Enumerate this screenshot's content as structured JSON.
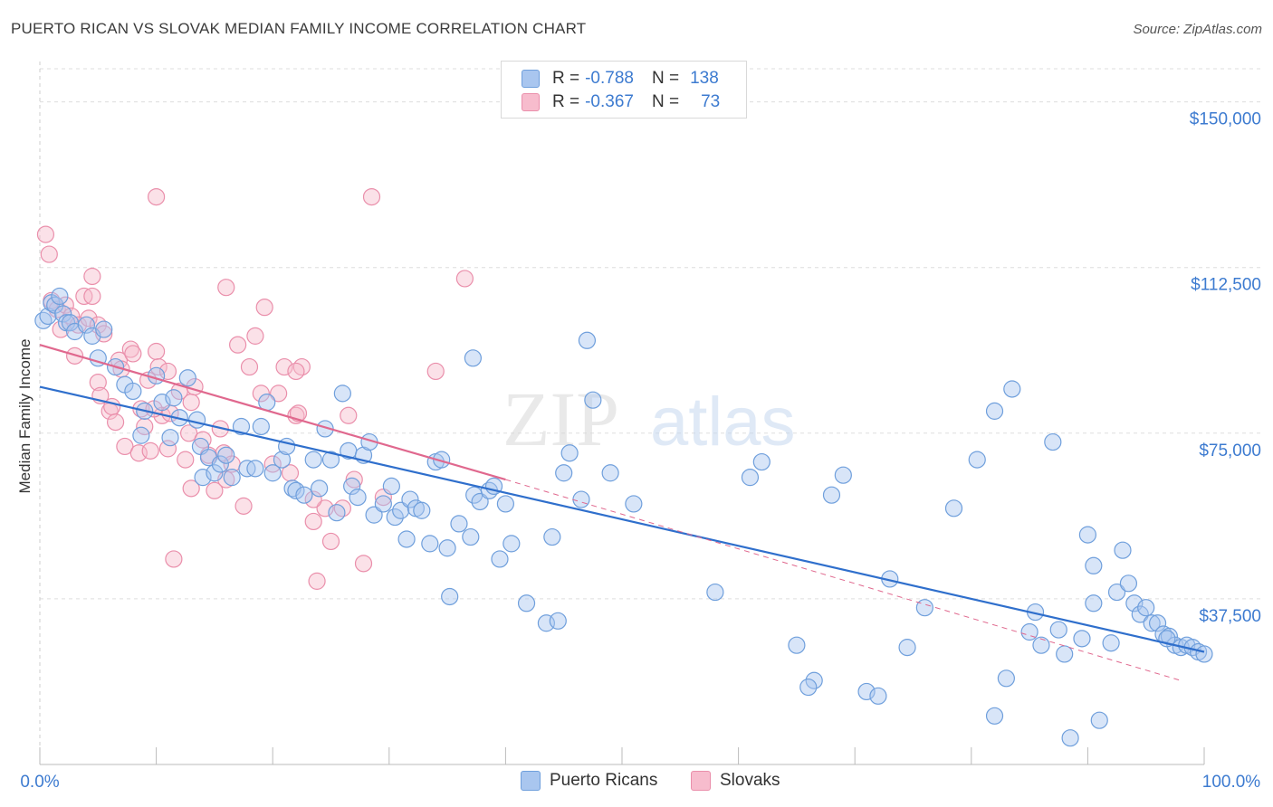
{
  "title": "PUERTO RICAN VS SLOVAK MEDIAN FAMILY INCOME CORRELATION CHART",
  "source": "Source: ZipAtlas.com",
  "watermark": {
    "zip": "ZIP",
    "atlas": "atlas"
  },
  "colors": {
    "blue_fill": "#a9c6ef",
    "blue_stroke": "#6f9fdc",
    "blue_line": "#2f6fcc",
    "pink_fill": "#f7bccd",
    "pink_stroke": "#ea8fab",
    "pink_line": "#e0688e",
    "tick_text": "#3d7bd0",
    "grid": "#dddddd"
  },
  "legend": {
    "rows": [
      {
        "r_label": "R =",
        "r_value": "-0.788",
        "n_label": "N =",
        "n_value": "138"
      },
      {
        "r_label": "R =",
        "r_value": "-0.367",
        "n_label": "N =",
        "n_value": "73"
      }
    ]
  },
  "bottom_legend": [
    {
      "label": "Puerto Ricans"
    },
    {
      "label": "Slovaks"
    }
  ],
  "chart_data": {
    "type": "scatter",
    "xlabel": "",
    "ylabel": "Median Family Income",
    "xlim": [
      0,
      100
    ],
    "ylim": [
      0,
      157500
    ],
    "x_tick_labels": [
      "0.0%",
      "100.0%"
    ],
    "y_ticks": [
      {
        "value": 37500,
        "label": "$37,500"
      },
      {
        "value": 75000,
        "label": "$75,000"
      },
      {
        "value": 112500,
        "label": "$112,500"
      },
      {
        "value": 150000,
        "label": "$150,000"
      }
    ],
    "grid": "horizontal dashed",
    "legend_position": "top-center",
    "series": [
      {
        "name": "Puerto Ricans",
        "color": "blue",
        "trend": {
          "x0": 0,
          "y0": 85500,
          "x1": 100,
          "y1": 25500
        },
        "points": [
          [
            0.3,
            100500
          ],
          [
            0.7,
            101500
          ],
          [
            1.0,
            104500
          ],
          [
            1.3,
            104000
          ],
          [
            1.7,
            106000
          ],
          [
            2.0,
            102000
          ],
          [
            2.3,
            100000
          ],
          [
            2.6,
            100000
          ],
          [
            3.0,
            98000
          ],
          [
            4.0,
            99500
          ],
          [
            4.5,
            97000
          ],
          [
            5.5,
            98500
          ],
          [
            5.0,
            92000
          ],
          [
            6.5,
            90000
          ],
          [
            7.3,
            86000
          ],
          [
            8.0,
            84500
          ],
          [
            8.7,
            74500
          ],
          [
            9.0,
            80000
          ],
          [
            10.0,
            88000
          ],
          [
            10.5,
            82000
          ],
          [
            11.5,
            83000
          ],
          [
            11.2,
            74000
          ],
          [
            12.0,
            78500
          ],
          [
            12.7,
            87500
          ],
          [
            13.5,
            78000
          ],
          [
            13.8,
            72000
          ],
          [
            14.0,
            65000
          ],
          [
            14.5,
            69500
          ],
          [
            15.0,
            66000
          ],
          [
            15.5,
            68000
          ],
          [
            16.0,
            70000
          ],
          [
            16.5,
            65000
          ],
          [
            17.3,
            76500
          ],
          [
            17.8,
            67000
          ],
          [
            18.5,
            67000
          ],
          [
            19.0,
            76500
          ],
          [
            19.5,
            82000
          ],
          [
            20.0,
            66000
          ],
          [
            20.8,
            69000
          ],
          [
            21.2,
            72000
          ],
          [
            21.7,
            62500
          ],
          [
            22.0,
            62000
          ],
          [
            22.7,
            61000
          ],
          [
            23.5,
            69000
          ],
          [
            24.0,
            62500
          ],
          [
            24.5,
            76000
          ],
          [
            25.0,
            69000
          ],
          [
            25.5,
            57000
          ],
          [
            26.0,
            84000
          ],
          [
            26.5,
            71000
          ],
          [
            26.8,
            63000
          ],
          [
            27.3,
            60500
          ],
          [
            27.8,
            70000
          ],
          [
            28.3,
            73000
          ],
          [
            28.7,
            56500
          ],
          [
            29.5,
            59000
          ],
          [
            30.2,
            63000
          ],
          [
            30.5,
            56000
          ],
          [
            31.0,
            57500
          ],
          [
            31.5,
            51000
          ],
          [
            31.8,
            60000
          ],
          [
            32.3,
            58000
          ],
          [
            32.8,
            57500
          ],
          [
            33.5,
            50000
          ],
          [
            34.0,
            68500
          ],
          [
            34.5,
            69000
          ],
          [
            35.0,
            49000
          ],
          [
            35.2,
            38000
          ],
          [
            36.0,
            54500
          ],
          [
            37.0,
            51500
          ],
          [
            37.3,
            61000
          ],
          [
            37.8,
            59500
          ],
          [
            37.2,
            92000
          ],
          [
            38.6,
            62000
          ],
          [
            39.0,
            63000
          ],
          [
            39.5,
            46500
          ],
          [
            40.0,
            59000
          ],
          [
            40.5,
            50000
          ],
          [
            41.8,
            36500
          ],
          [
            43.5,
            32000
          ],
          [
            44.5,
            32500
          ],
          [
            44.0,
            51500
          ],
          [
            45.0,
            66000
          ],
          [
            45.5,
            70500
          ],
          [
            46.5,
            60000
          ],
          [
            47.0,
            96000
          ],
          [
            47.5,
            82500
          ],
          [
            49.0,
            66000
          ],
          [
            51.0,
            59000
          ],
          [
            58.0,
            39000
          ],
          [
            61.0,
            65000
          ],
          [
            62.0,
            68500
          ],
          [
            65.0,
            27000
          ],
          [
            66.5,
            19000
          ],
          [
            66.0,
            17500
          ],
          [
            68.0,
            61000
          ],
          [
            69.0,
            65500
          ],
          [
            71.0,
            16500
          ],
          [
            72.0,
            15500
          ],
          [
            73.0,
            42000
          ],
          [
            74.5,
            26500
          ],
          [
            76.0,
            35500
          ],
          [
            78.5,
            58000
          ],
          [
            80.5,
            69000
          ],
          [
            82.0,
            80000
          ],
          [
            82.0,
            11000
          ],
          [
            83.0,
            19500
          ],
          [
            83.5,
            85000
          ],
          [
            85.0,
            30000
          ],
          [
            85.5,
            34500
          ],
          [
            86.0,
            27000
          ],
          [
            87.0,
            73000
          ],
          [
            87.5,
            30500
          ],
          [
            88.0,
            25000
          ],
          [
            88.5,
            6000
          ],
          [
            89.5,
            28500
          ],
          [
            90.0,
            52000
          ],
          [
            90.5,
            36500
          ],
          [
            90.5,
            45000
          ],
          [
            91.0,
            10000
          ],
          [
            92.0,
            27500
          ],
          [
            92.5,
            39000
          ],
          [
            93.0,
            48500
          ],
          [
            93.5,
            41000
          ],
          [
            94.0,
            36500
          ],
          [
            94.5,
            34000
          ],
          [
            95.0,
            35500
          ],
          [
            95.5,
            32000
          ],
          [
            96.0,
            32000
          ],
          [
            96.5,
            29500
          ],
          [
            97.0,
            29000
          ],
          [
            97.5,
            27000
          ],
          [
            98.0,
            26500
          ],
          [
            98.5,
            27000
          ],
          [
            99.0,
            26500
          ],
          [
            99.5,
            25500
          ],
          [
            100.0,
            25000
          ],
          [
            96.8,
            28500
          ]
        ]
      },
      {
        "name": "Slovaks",
        "color": "pink",
        "trend": {
          "x0": 0,
          "y0": 95000,
          "x1": 40,
          "y1": 64500
        },
        "trend_dashed": {
          "x0": 40,
          "y0": 64500,
          "x1": 98,
          "y1": 19000
        },
        "points": [
          [
            0.5,
            120000
          ],
          [
            0.8,
            115500
          ],
          [
            1.0,
            105000
          ],
          [
            1.5,
            103000
          ],
          [
            1.8,
            98500
          ],
          [
            2.2,
            104000
          ],
          [
            2.7,
            101500
          ],
          [
            3.0,
            92500
          ],
          [
            3.3,
            99500
          ],
          [
            3.8,
            106000
          ],
          [
            4.2,
            101000
          ],
          [
            4.5,
            106000
          ],
          [
            4.5,
            110500
          ],
          [
            5.0,
            99500
          ],
          [
            5.5,
            97500
          ],
          [
            5.0,
            86500
          ],
          [
            5.2,
            83500
          ],
          [
            6.0,
            80000
          ],
          [
            6.2,
            81000
          ],
          [
            6.5,
            77500
          ],
          [
            6.8,
            91500
          ],
          [
            7.0,
            89500
          ],
          [
            7.3,
            72000
          ],
          [
            7.8,
            94000
          ],
          [
            8.0,
            93000
          ],
          [
            8.5,
            70500
          ],
          [
            8.7,
            80500
          ],
          [
            9.0,
            76500
          ],
          [
            9.3,
            87000
          ],
          [
            9.5,
            71000
          ],
          [
            10.0,
            93500
          ],
          [
            10.2,
            90000
          ],
          [
            10.5,
            79000
          ],
          [
            11.0,
            89000
          ],
          [
            11.0,
            71500
          ],
          [
            11.5,
            46500
          ],
          [
            12.0,
            84500
          ],
          [
            12.5,
            69000
          ],
          [
            12.8,
            75000
          ],
          [
            13.0,
            82000
          ],
          [
            13.3,
            85500
          ],
          [
            14.0,
            73500
          ],
          [
            14.5,
            70000
          ],
          [
            15.0,
            62000
          ],
          [
            15.5,
            76000
          ],
          [
            15.8,
            70500
          ],
          [
            16.0,
            64500
          ],
          [
            16.5,
            68000
          ],
          [
            17.0,
            95000
          ],
          [
            17.5,
            58500
          ],
          [
            18.0,
            90000
          ],
          [
            18.5,
            97000
          ],
          [
            19.0,
            84000
          ],
          [
            19.3,
            103500
          ],
          [
            20.0,
            68000
          ],
          [
            20.5,
            84000
          ],
          [
            21.0,
            90000
          ],
          [
            21.5,
            66000
          ],
          [
            22.0,
            79000
          ],
          [
            22.2,
            79500
          ],
          [
            22.5,
            90000
          ],
          [
            23.5,
            55000
          ],
          [
            24.5,
            58000
          ],
          [
            23.5,
            60000
          ],
          [
            23.8,
            41500
          ],
          [
            25.0,
            50500
          ],
          [
            26.0,
            58000
          ],
          [
            26.5,
            79000
          ],
          [
            27.0,
            64500
          ],
          [
            27.8,
            45500
          ],
          [
            29.5,
            60500
          ],
          [
            34.0,
            89000
          ],
          [
            36.5,
            110000
          ],
          [
            10.0,
            128500
          ],
          [
            28.5,
            128500
          ],
          [
            9.8,
            80500
          ],
          [
            11.2,
            79500
          ],
          [
            16.0,
            108000
          ],
          [
            13.0,
            62500
          ],
          [
            22.0,
            89000
          ]
        ]
      }
    ]
  }
}
